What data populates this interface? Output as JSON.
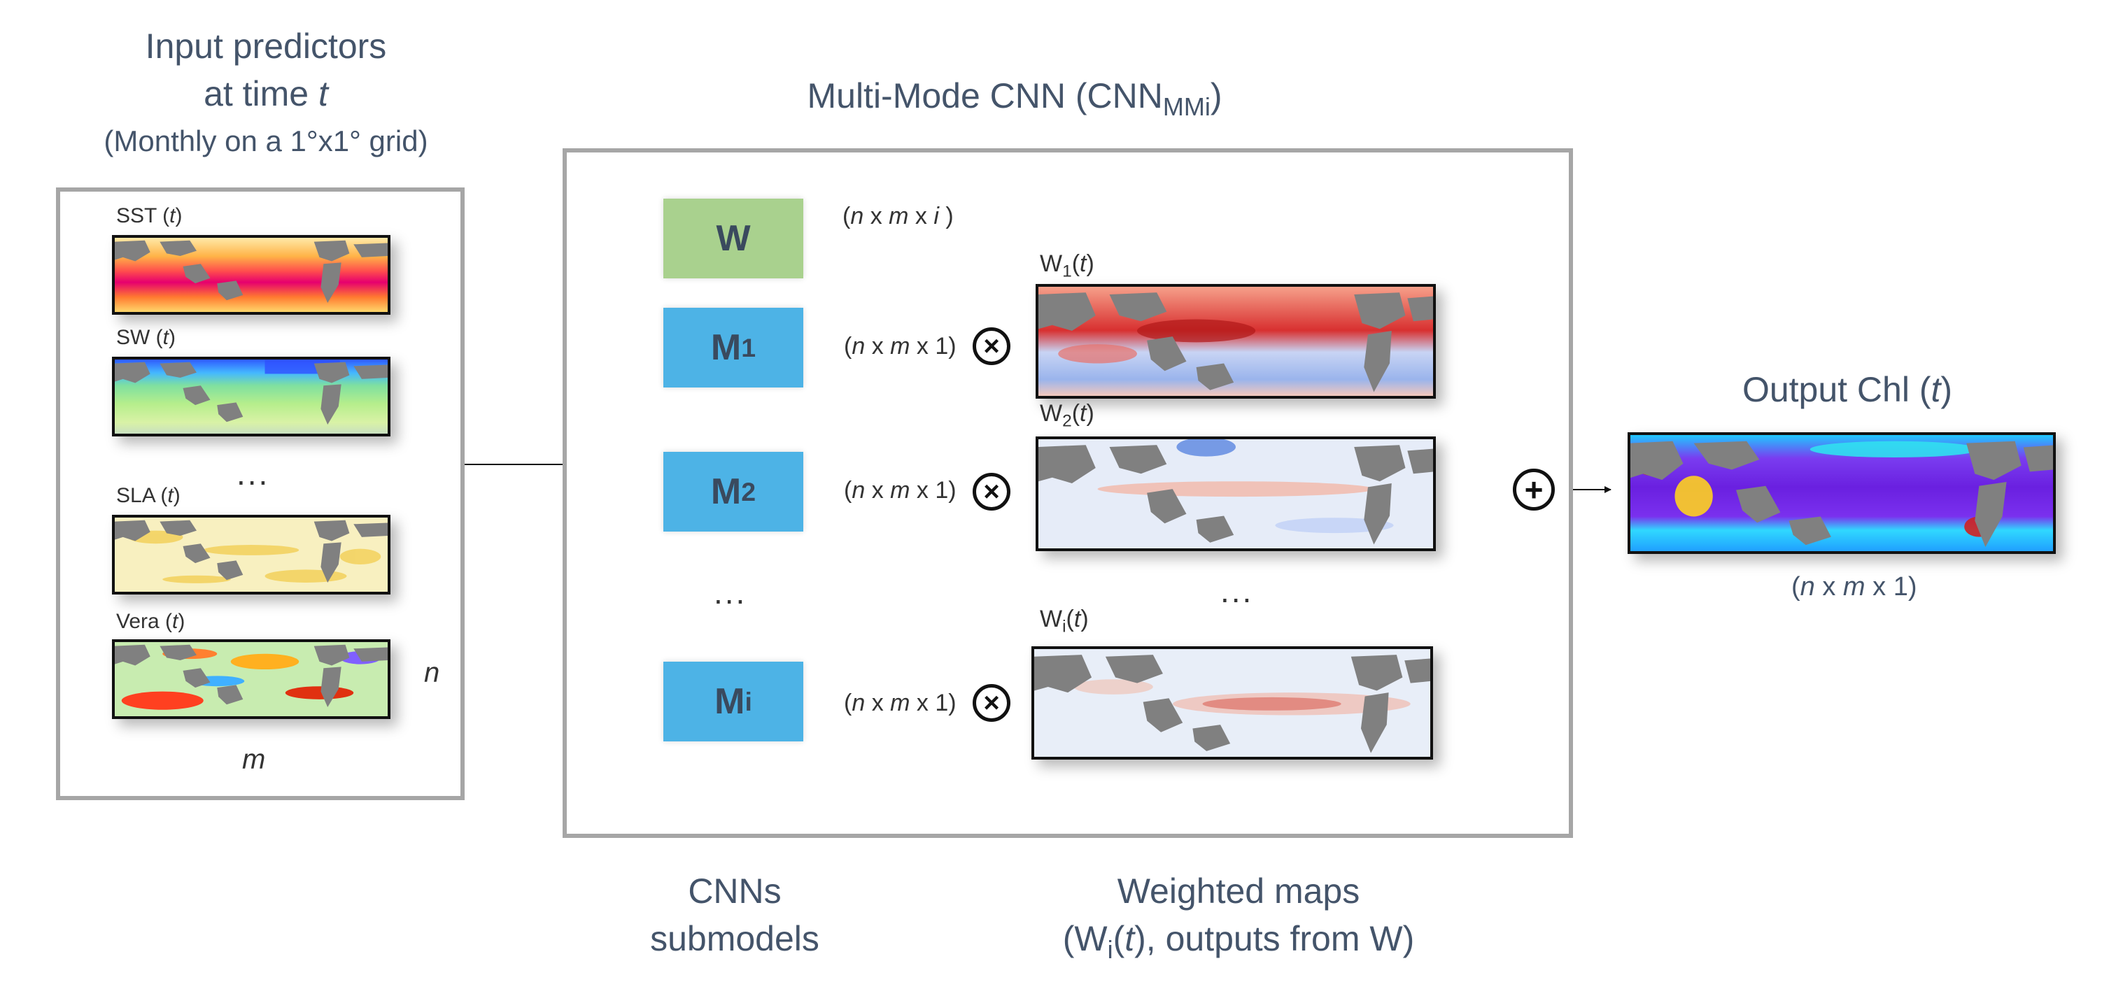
{
  "left_panel": {
    "title_line1": "Input predictors",
    "title_line2_prefix": "at time ",
    "title_line2_var": "t",
    "title_line3": "(Monthly on a 1°x1° grid)",
    "maps": [
      {
        "name": "SST",
        "var": "t"
      },
      {
        "name": "SW",
        "var": "t"
      },
      {
        "name": "SLA",
        "var": "t"
      },
      {
        "name": "Vera",
        "var": "t"
      }
    ],
    "ellipsis": "...",
    "dim_n": "n",
    "dim_m": "m"
  },
  "center_panel": {
    "title_prefix": "Multi-Mode CNN (CNN",
    "title_sub": "MMi",
    "title_suffix": ")",
    "w_box_label": "W",
    "w_dim_label": "(n x m x i )",
    "modes": [
      {
        "base": "M",
        "sub": "1",
        "dim": "(n x m x 1)"
      },
      {
        "base": "M",
        "sub": "2",
        "dim": "(n x m x 1)"
      },
      {
        "base": "M",
        "sub": "i",
        "dim": "(n x m x 1)"
      }
    ],
    "weight_maps": [
      {
        "base": "W",
        "sub": "1",
        "var": "t"
      },
      {
        "base": "W",
        "sub": "2",
        "var": "t"
      },
      {
        "base": "W",
        "sub": "i",
        "var": "t"
      }
    ],
    "mode_ellipsis": "...",
    "weight_ellipsis": "...",
    "otimes_symbol": "×",
    "oplus_symbol": "+"
  },
  "right_panel": {
    "title_prefix": "Output Chl (",
    "title_var": "t",
    "title_suffix": ")",
    "dim_label": "(n x m x 1)"
  },
  "bottom": {
    "cnn_line1": "CNNs",
    "cnn_line2": "submodels",
    "weighted_line1": "Weighted maps",
    "weighted_line2_prefix": "(W",
    "weighted_line2_sub": "i",
    "weighted_line2_mid": "(",
    "weighted_line2_var": "t",
    "weighted_line2_suffix": "), outputs from W)"
  },
  "colors": {
    "text": "#44546a",
    "box_border": "#a6a6a6",
    "w_box": "#a9d18e",
    "m_box": "#4db3e6",
    "land": "#7f7f7f"
  }
}
